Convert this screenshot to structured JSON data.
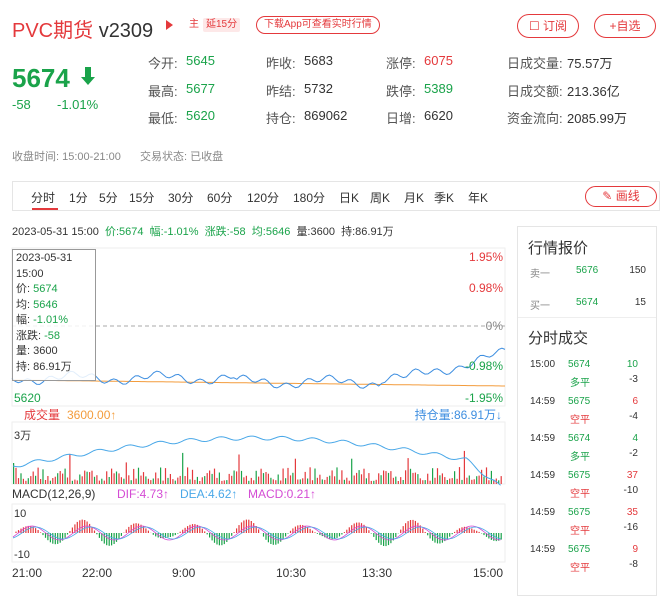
{
  "header": {
    "name": "PVC期货",
    "code": "v2309",
    "tag_main": "主",
    "tag_delay": "延15分",
    "download": "下载App可查看实时行情",
    "subscribe": "订阅",
    "add": "+自选"
  },
  "quote": {
    "price": "5674",
    "change": "-58",
    "change_pct": "-1.01%"
  },
  "stats": [
    {
      "label": "今开:",
      "value": "5645",
      "color": "green"
    },
    {
      "label": "昨收:",
      "value": "5683",
      "color": "normal"
    },
    {
      "label": "涨停:",
      "value": "6075",
      "color": "red"
    },
    {
      "label": "日成交量:",
      "value": "75.57万",
      "color": "normal"
    },
    {
      "label": "最高:",
      "value": "5677",
      "color": "green"
    },
    {
      "label": "昨结:",
      "value": "5732",
      "color": "normal"
    },
    {
      "label": "跌停:",
      "value": "5389",
      "color": "green"
    },
    {
      "label": "日成交额:",
      "value": "213.36亿",
      "color": "normal"
    },
    {
      "label": "最低:",
      "value": "5620",
      "color": "green"
    },
    {
      "label": "持仓:",
      "value": "869062",
      "color": "normal"
    },
    {
      "label": "日增:",
      "value": "6620",
      "color": "normal"
    },
    {
      "label": "资金流向:",
      "value": "2085.99万",
      "color": "normal"
    }
  ],
  "status": {
    "time_label": "收盘时间:",
    "time_value": "15:00-21:00",
    "state_label": "交易状态:",
    "state_value": "已收盘"
  },
  "tabs": [
    "分时",
    "1分",
    "5分",
    "15分",
    "30分",
    "60分",
    "120分",
    "180分",
    "日K",
    "周K",
    "月K",
    "季K",
    "年K"
  ],
  "draw_button": "画线",
  "infoline": {
    "datetime": "2023-05-31 15:00",
    "price": "价:5674",
    "amp": "幅:-1.01%",
    "chg": "涨跌:-58",
    "avg": "均:5646",
    "vol": "量:3600",
    "hold": "持:86.91万"
  },
  "tooltip": {
    "date": "2023-05-31",
    "time": "15:00",
    "price_label": "价:",
    "price": "5674",
    "avg_label": "均:",
    "avg": "5646",
    "amp_label": "幅:",
    "amp": "-1.01%",
    "chg_label": "涨跌:",
    "chg": "-58",
    "vol_label": "量:",
    "vol": "3600",
    "hold_label": "持:",
    "hold": "86.91万"
  },
  "chart_labels": {
    "pct_top": "1.95%",
    "pct_mid": "0.98%",
    "pct_zero": "0%",
    "pct_low1": "-0.98%",
    "pct_low2": "-1.95%",
    "price_low": "5620",
    "volume_label": "成交量",
    "volume_value": "3600.00↑",
    "hold_label": "持仓量:86.91万↓",
    "vol_axis": "3万",
    "macd_label": "MACD(12,26,9)",
    "dif": "DIF:4.73↑",
    "dea": "DEA:4.62↑",
    "macd": "MACD:0.21↑",
    "macd_top": "10",
    "macd_bottom": "-10",
    "times": [
      "21:00",
      "22:00",
      "9:00",
      "10:30",
      "13:30",
      "15:00"
    ]
  },
  "orderbook": {
    "title": "行情报价",
    "rows": [
      {
        "side": "卖一",
        "price": "5676",
        "qty": "150"
      },
      {
        "side": "买一",
        "price": "5674",
        "qty": "15"
      }
    ]
  },
  "trades": {
    "title": "分时成交",
    "rows": [
      {
        "time": "15:00",
        "price": "5674",
        "qty": "10",
        "type": "多平",
        "oi": "-3",
        "color": "green"
      },
      {
        "time": "14:59",
        "price": "5675",
        "qty": "6",
        "type": "空平",
        "oi": "-4",
        "color": "red"
      },
      {
        "time": "14:59",
        "price": "5674",
        "qty": "4",
        "type": "多平",
        "oi": "-2",
        "color": "green"
      },
      {
        "time": "14:59",
        "price": "5675",
        "qty": "37",
        "type": "空平",
        "oi": "-10",
        "color": "red"
      },
      {
        "time": "14:59",
        "price": "5675",
        "qty": "35",
        "type": "空平",
        "oi": "-16",
        "color": "red"
      },
      {
        "time": "14:59",
        "price": "5675",
        "qty": "9",
        "type": "空平",
        "oi": "-8",
        "color": "red"
      }
    ]
  },
  "colors": {
    "up": "#e4393c",
    "down": "#1aa34a",
    "price_line": "#3d8ee0",
    "avg_line": "#f39c3c",
    "hold_line": "#4aa8e8"
  }
}
